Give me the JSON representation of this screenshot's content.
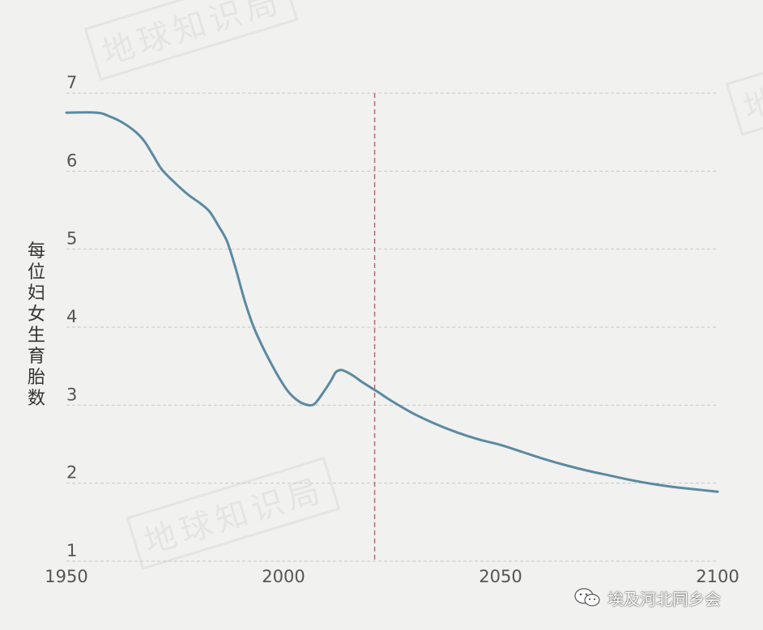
{
  "chart_data": {
    "type": "line",
    "title": "",
    "xlabel": "",
    "ylabel": "每位妇女生育胎数",
    "xlim": [
      1950,
      2100
    ],
    "ylim": [
      1,
      7
    ],
    "x_ticks": [
      "1950",
      "2000",
      "2050",
      "2100"
    ],
    "y_ticks": [
      "1",
      "2",
      "3",
      "4",
      "5",
      "6",
      "7"
    ],
    "grid": true,
    "reference_line_x": 2021,
    "series": [
      {
        "points": [
          [
            1950,
            6.75
          ],
          [
            1957,
            6.75
          ],
          [
            1960,
            6.7
          ],
          [
            1963,
            6.62
          ],
          [
            1966,
            6.5
          ],
          [
            1968,
            6.38
          ],
          [
            1970,
            6.2
          ],
          [
            1972,
            6.02
          ],
          [
            1975,
            5.85
          ],
          [
            1978,
            5.7
          ],
          [
            1981,
            5.58
          ],
          [
            1983,
            5.48
          ],
          [
            1985,
            5.3
          ],
          [
            1987,
            5.1
          ],
          [
            1989,
            4.75
          ],
          [
            1991,
            4.35
          ],
          [
            1993,
            4.02
          ],
          [
            1995,
            3.77
          ],
          [
            1997,
            3.55
          ],
          [
            1999,
            3.35
          ],
          [
            2001,
            3.18
          ],
          [
            2003,
            3.07
          ],
          [
            2005,
            3.01
          ],
          [
            2007,
            3.01
          ],
          [
            2009,
            3.15
          ],
          [
            2011,
            3.32
          ],
          [
            2012,
            3.42
          ],
          [
            2013,
            3.45
          ],
          [
            2014,
            3.44
          ],
          [
            2016,
            3.38
          ],
          [
            2018,
            3.3
          ],
          [
            2020,
            3.23
          ],
          [
            2022,
            3.16
          ],
          [
            2025,
            3.05
          ],
          [
            2030,
            2.89
          ],
          [
            2035,
            2.76
          ],
          [
            2040,
            2.65
          ],
          [
            2045,
            2.56
          ],
          [
            2050,
            2.49
          ],
          [
            2055,
            2.4
          ],
          [
            2060,
            2.31
          ],
          [
            2065,
            2.23
          ],
          [
            2070,
            2.16
          ],
          [
            2075,
            2.1
          ],
          [
            2080,
            2.04
          ],
          [
            2085,
            1.99
          ],
          [
            2090,
            1.95
          ],
          [
            2095,
            1.92
          ],
          [
            2100,
            1.89
          ]
        ],
        "color": "#5a8aa1"
      }
    ]
  },
  "watermarks": [
    "地球知识局",
    "地球知识局",
    "地球知识局"
  ],
  "brand": {
    "text": "埃及河北同乡会"
  }
}
